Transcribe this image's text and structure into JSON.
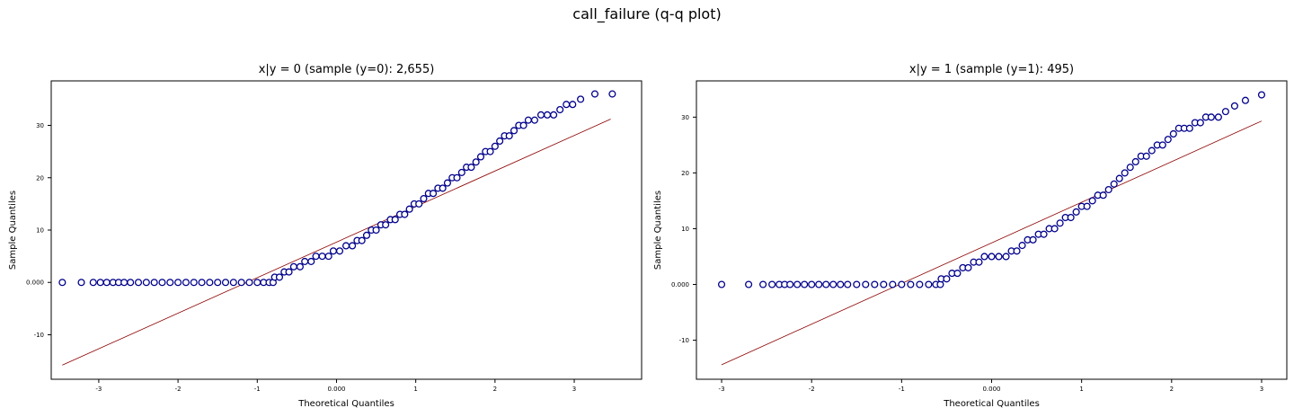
{
  "figure": {
    "title": "call_failure (q-q plot)"
  },
  "chart_data": [
    {
      "type": "scatter",
      "title": "x|y = 0 (sample (y=0): 2,655)",
      "xlabel": "Theoretical Quantiles",
      "ylabel": "Sample Quantiles",
      "xlim": [
        -3.6,
        3.85
      ],
      "ylim": [
        -18.5,
        38.5
      ],
      "xticks": [
        {
          "v": -3,
          "label": "-3"
        },
        {
          "v": -2,
          "label": "-2"
        },
        {
          "v": -1,
          "label": "-1"
        },
        {
          "v": 0,
          "label": "0.000"
        },
        {
          "v": 1,
          "label": "1"
        },
        {
          "v": 2,
          "label": "2"
        },
        {
          "v": 3,
          "label": "3"
        }
      ],
      "yticks": [
        {
          "v": -10,
          "label": "-10"
        },
        {
          "v": 0,
          "label": "0.000"
        },
        {
          "v": 10,
          "label": "10"
        },
        {
          "v": 20,
          "label": "20"
        },
        {
          "v": 30,
          "label": "30"
        }
      ],
      "grid": false,
      "reference_line": {
        "x": [
          -3.46,
          3.46
        ],
        "y": [
          -15.8,
          31.2
        ],
        "color": "#8b0000"
      },
      "marker": {
        "edge": "#00008b",
        "face": "#ffffff"
      },
      "points": [
        [
          -3.46,
          0
        ],
        [
          -3.22,
          0
        ],
        [
          -3.07,
          0
        ],
        [
          -2.98,
          0
        ],
        [
          -2.9,
          0
        ],
        [
          -2.82,
          0
        ],
        [
          -2.75,
          0
        ],
        [
          -2.68,
          0
        ],
        [
          -2.6,
          0
        ],
        [
          -2.5,
          0
        ],
        [
          -2.4,
          0
        ],
        [
          -2.3,
          0
        ],
        [
          -2.2,
          0
        ],
        [
          -2.1,
          0
        ],
        [
          -2.0,
          0
        ],
        [
          -1.9,
          0
        ],
        [
          -1.8,
          0
        ],
        [
          -1.7,
          0
        ],
        [
          -1.6,
          0
        ],
        [
          -1.5,
          0
        ],
        [
          -1.4,
          0
        ],
        [
          -1.3,
          0
        ],
        [
          -1.2,
          0
        ],
        [
          -1.1,
          0
        ],
        [
          -1.0,
          0
        ],
        [
          -0.92,
          0
        ],
        [
          -0.85,
          0
        ],
        [
          -0.8,
          0
        ],
        [
          -0.78,
          1
        ],
        [
          -0.72,
          1
        ],
        [
          -0.66,
          2
        ],
        [
          -0.6,
          2
        ],
        [
          -0.54,
          3
        ],
        [
          -0.46,
          3
        ],
        [
          -0.4,
          4
        ],
        [
          -0.32,
          4
        ],
        [
          -0.26,
          5
        ],
        [
          -0.18,
          5
        ],
        [
          -0.1,
          5
        ],
        [
          -0.04,
          6
        ],
        [
          0.04,
          6
        ],
        [
          0.12,
          7
        ],
        [
          0.2,
          7
        ],
        [
          0.26,
          8
        ],
        [
          0.32,
          8
        ],
        [
          0.38,
          9
        ],
        [
          0.44,
          10
        ],
        [
          0.5,
          10
        ],
        [
          0.56,
          11
        ],
        [
          0.62,
          11
        ],
        [
          0.68,
          12
        ],
        [
          0.74,
          12
        ],
        [
          0.8,
          13
        ],
        [
          0.86,
          13
        ],
        [
          0.92,
          14
        ],
        [
          0.98,
          15
        ],
        [
          1.04,
          15
        ],
        [
          1.1,
          16
        ],
        [
          1.16,
          17
        ],
        [
          1.22,
          17
        ],
        [
          1.28,
          18
        ],
        [
          1.34,
          18
        ],
        [
          1.4,
          19
        ],
        [
          1.46,
          20
        ],
        [
          1.52,
          20
        ],
        [
          1.58,
          21
        ],
        [
          1.64,
          22
        ],
        [
          1.7,
          22
        ],
        [
          1.76,
          23
        ],
        [
          1.82,
          24
        ],
        [
          1.88,
          25
        ],
        [
          1.94,
          25
        ],
        [
          2.0,
          26
        ],
        [
          2.06,
          27
        ],
        [
          2.12,
          28
        ],
        [
          2.18,
          28
        ],
        [
          2.24,
          29
        ],
        [
          2.3,
          30
        ],
        [
          2.36,
          30
        ],
        [
          2.42,
          31
        ],
        [
          2.5,
          31
        ],
        [
          2.58,
          32
        ],
        [
          2.66,
          32
        ],
        [
          2.74,
          32
        ],
        [
          2.82,
          33
        ],
        [
          2.9,
          34
        ],
        [
          2.98,
          34
        ],
        [
          3.08,
          35
        ],
        [
          3.26,
          36
        ],
        [
          3.48,
          36
        ]
      ]
    },
    {
      "type": "scatter",
      "title": "x|y = 1 (sample (y=1): 495)",
      "xlabel": "Theoretical Quantiles",
      "ylabel": "Sample Quantiles",
      "xlim": [
        -3.28,
        3.28
      ],
      "ylim": [
        -17,
        36.5
      ],
      "xticks": [
        {
          "v": -3,
          "label": "-3"
        },
        {
          "v": -2,
          "label": "-2"
        },
        {
          "v": -1,
          "label": "-1"
        },
        {
          "v": 0,
          "label": "0.000"
        },
        {
          "v": 1,
          "label": "1"
        },
        {
          "v": 2,
          "label": "2"
        },
        {
          "v": 3,
          "label": "3"
        }
      ],
      "yticks": [
        {
          "v": -10,
          "label": "-10"
        },
        {
          "v": 0,
          "label": "0.000"
        },
        {
          "v": 10,
          "label": "10"
        },
        {
          "v": 20,
          "label": "20"
        },
        {
          "v": 30,
          "label": "30"
        }
      ],
      "grid": false,
      "reference_line": {
        "x": [
          -3.0,
          3.0
        ],
        "y": [
          -14.4,
          29.3
        ],
        "color": "#8b0000"
      },
      "marker": {
        "edge": "#00008b",
        "face": "#ffffff"
      },
      "points": [
        [
          -3.0,
          0
        ],
        [
          -2.7,
          0
        ],
        [
          -2.54,
          0
        ],
        [
          -2.44,
          0
        ],
        [
          -2.36,
          0
        ],
        [
          -2.3,
          0
        ],
        [
          -2.24,
          0
        ],
        [
          -2.16,
          0
        ],
        [
          -2.08,
          0
        ],
        [
          -2.0,
          0
        ],
        [
          -1.92,
          0
        ],
        [
          -1.84,
          0
        ],
        [
          -1.76,
          0
        ],
        [
          -1.68,
          0
        ],
        [
          -1.6,
          0
        ],
        [
          -1.5,
          0
        ],
        [
          -1.4,
          0
        ],
        [
          -1.3,
          0
        ],
        [
          -1.2,
          0
        ],
        [
          -1.1,
          0
        ],
        [
          -1.0,
          0
        ],
        [
          -0.9,
          0
        ],
        [
          -0.8,
          0
        ],
        [
          -0.7,
          0
        ],
        [
          -0.62,
          0
        ],
        [
          -0.57,
          0
        ],
        [
          -0.56,
          1
        ],
        [
          -0.5,
          1
        ],
        [
          -0.44,
          2
        ],
        [
          -0.38,
          2
        ],
        [
          -0.32,
          3
        ],
        [
          -0.26,
          3
        ],
        [
          -0.2,
          4
        ],
        [
          -0.14,
          4
        ],
        [
          -0.08,
          5
        ],
        [
          0.0,
          5
        ],
        [
          0.08,
          5
        ],
        [
          0.16,
          5
        ],
        [
          0.22,
          6
        ],
        [
          0.28,
          6
        ],
        [
          0.34,
          7
        ],
        [
          0.4,
          8
        ],
        [
          0.46,
          8
        ],
        [
          0.52,
          9
        ],
        [
          0.58,
          9
        ],
        [
          0.64,
          10
        ],
        [
          0.7,
          10
        ],
        [
          0.76,
          11
        ],
        [
          0.82,
          12
        ],
        [
          0.88,
          12
        ],
        [
          0.94,
          13
        ],
        [
          1.0,
          14
        ],
        [
          1.06,
          14
        ],
        [
          1.12,
          15
        ],
        [
          1.18,
          16
        ],
        [
          1.24,
          16
        ],
        [
          1.3,
          17
        ],
        [
          1.36,
          18
        ],
        [
          1.42,
          19
        ],
        [
          1.48,
          20
        ],
        [
          1.54,
          21
        ],
        [
          1.6,
          22
        ],
        [
          1.66,
          23
        ],
        [
          1.72,
          23
        ],
        [
          1.78,
          24
        ],
        [
          1.84,
          25
        ],
        [
          1.9,
          25
        ],
        [
          1.96,
          26
        ],
        [
          2.02,
          27
        ],
        [
          2.08,
          28
        ],
        [
          2.14,
          28
        ],
        [
          2.2,
          28
        ],
        [
          2.26,
          29
        ],
        [
          2.32,
          29
        ],
        [
          2.38,
          30
        ],
        [
          2.44,
          30
        ],
        [
          2.52,
          30
        ],
        [
          2.6,
          31
        ],
        [
          2.7,
          32
        ],
        [
          2.82,
          33
        ],
        [
          3.0,
          34
        ]
      ]
    }
  ]
}
